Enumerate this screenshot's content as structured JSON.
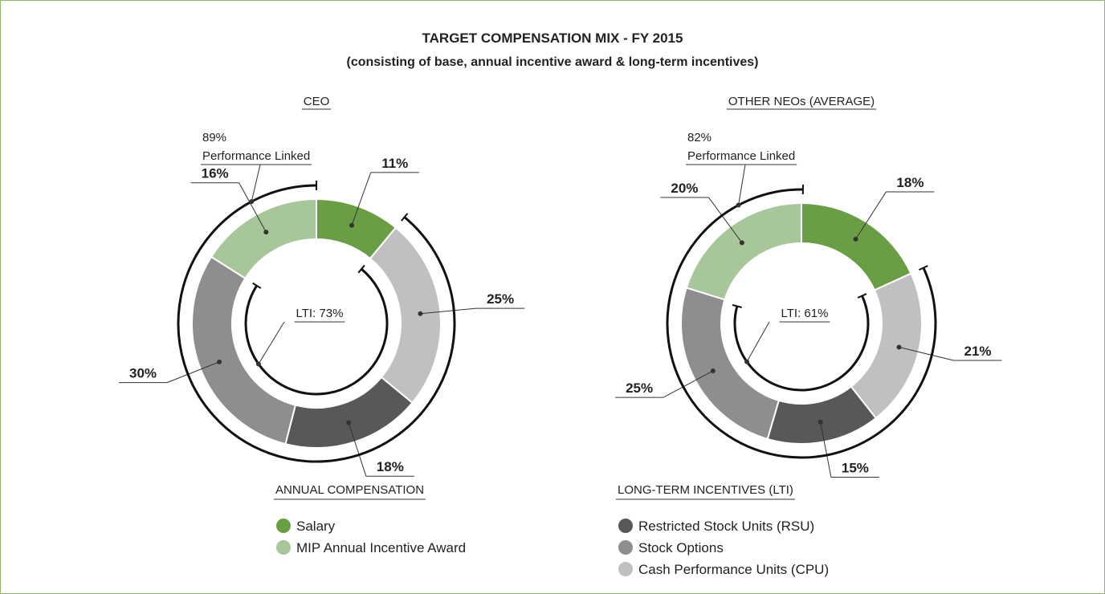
{
  "title": "TARGET COMPENSATION MIX - FY 2015",
  "subtitle": "(consisting of base, annual incentive award & long-term incentives)",
  "chart_data": [
    {
      "type": "donut",
      "title": "CEO",
      "categories": [
        "Salary",
        "Cash Performance Units (CPU)",
        "Restricted Stock Units (RSU)",
        "Stock Options",
        "MIP Annual Incentive Award"
      ],
      "values": [
        11,
        25,
        18,
        30,
        16
      ],
      "value_labels": [
        "11%",
        "25%",
        "18%",
        "30%",
        "16%"
      ],
      "colors": [
        "#6a9e45",
        "#c0c0c2",
        "#58585a",
        "#8e8e90",
        "#a7c79a"
      ],
      "performance_linked": {
        "value": 89,
        "label": "89%",
        "text": "Performance Linked"
      },
      "lti": {
        "value": 73,
        "label": "LTI: 73%"
      }
    },
    {
      "type": "donut",
      "title": "OTHER NEOs (AVERAGE)",
      "categories": [
        "Salary",
        "Cash Performance Units (CPU)",
        "Restricted Stock Units (RSU)",
        "Stock Options",
        "MIP Annual Incentive Award"
      ],
      "values": [
        18,
        21,
        15,
        25,
        20
      ],
      "value_labels": [
        "18%",
        "21%",
        "15%",
        "25%",
        "20%"
      ],
      "colors": [
        "#6a9e45",
        "#c0c0c2",
        "#58585a",
        "#8e8e90",
        "#a7c79a"
      ],
      "performance_linked": {
        "value": 82,
        "label": "82%",
        "text": "Performance Linked"
      },
      "lti": {
        "value": 61,
        "label": "LTI: 61%"
      }
    }
  ],
  "legend": [
    {
      "title": "ANNUAL COMPENSATION",
      "items": [
        "Salary",
        "MIP Annual Incentive Award"
      ]
    },
    {
      "title": "LONG-TERM INCENTIVES (LTI)",
      "items": [
        "Restricted Stock Units (RSU)",
        "Stock Options",
        "Cash Performance Units (CPU)"
      ]
    }
  ]
}
